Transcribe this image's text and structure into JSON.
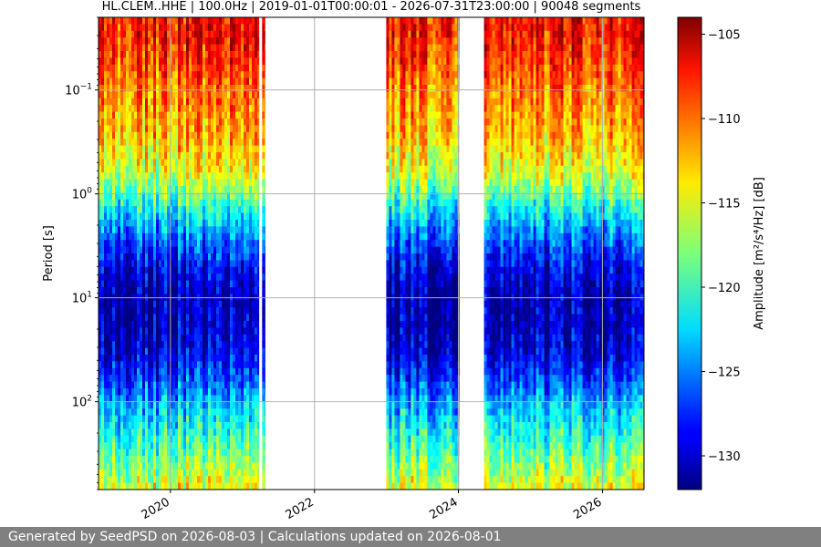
{
  "chart_data": {
    "type": "heatmap",
    "title": "HL.CLEM..HHE | 100.0Hz | 2019-01-01T00:00:01 - 2026-07-31T23:00:00 | 90048 segments",
    "xlabel": "",
    "ylabel": "Period [s]",
    "x_range": [
      "2019-01-01",
      "2026-07-31"
    ],
    "x_ticks": [
      "2020",
      "2022",
      "2024",
      "2026"
    ],
    "y_scale": "log",
    "y_inverted": true,
    "y_range": [
      0.02,
      700
    ],
    "y_ticks": [
      {
        "value": 0.1,
        "base": "10",
        "exp": "−1"
      },
      {
        "value": 1,
        "base": "10",
        "exp": "0"
      },
      {
        "value": 10,
        "base": "10",
        "exp": "1"
      },
      {
        "value": 100,
        "base": "10",
        "exp": "2"
      }
    ],
    "grid": true,
    "data_periods": [
      {
        "start": "2019-01-01",
        "end": "2021-03-25"
      },
      {
        "start": "2021-04-10",
        "end": "2021-04-25"
      },
      {
        "start": "2022-12-31",
        "end": "2024-01-05"
      },
      {
        "start": "2024-05-10",
        "end": "2026-07-31"
      }
    ],
    "amplitude_profile_db": [
      {
        "period": 0.02,
        "amplitude": -108
      },
      {
        "period": 0.03,
        "amplitude": -108
      },
      {
        "period": 0.05,
        "amplitude": -109
      },
      {
        "period": 0.1,
        "amplitude": -111
      },
      {
        "period": 0.3,
        "amplitude": -113
      },
      {
        "period": 0.6,
        "amplitude": -115.5
      },
      {
        "period": 1,
        "amplitude": -119
      },
      {
        "period": 2,
        "amplitude": -124
      },
      {
        "period": 5,
        "amplitude": -129
      },
      {
        "period": 10,
        "amplitude": -131
      },
      {
        "period": 30,
        "amplitude": -130
      },
      {
        "period": 60,
        "amplitude": -127
      },
      {
        "period": 100,
        "amplitude": -124
      },
      {
        "period": 200,
        "amplitude": -121
      },
      {
        "period": 400,
        "amplitude": -118
      },
      {
        "period": 700,
        "amplitude": -115
      }
    ],
    "colorbar": {
      "label": "Amplitude [m²/s⁴/Hz] [dB]",
      "range": [
        -132,
        -104
      ],
      "ticks": [
        "−105",
        "−110",
        "−115",
        "−120",
        "−125",
        "−130"
      ],
      "tick_values": [
        -105,
        -110,
        -115,
        -120,
        -125,
        -130
      ],
      "colormap": "jet"
    }
  },
  "footer": {
    "text": "Generated by SeedPSD on 2026-08-03 | Calculations updated on 2026-08-01"
  }
}
